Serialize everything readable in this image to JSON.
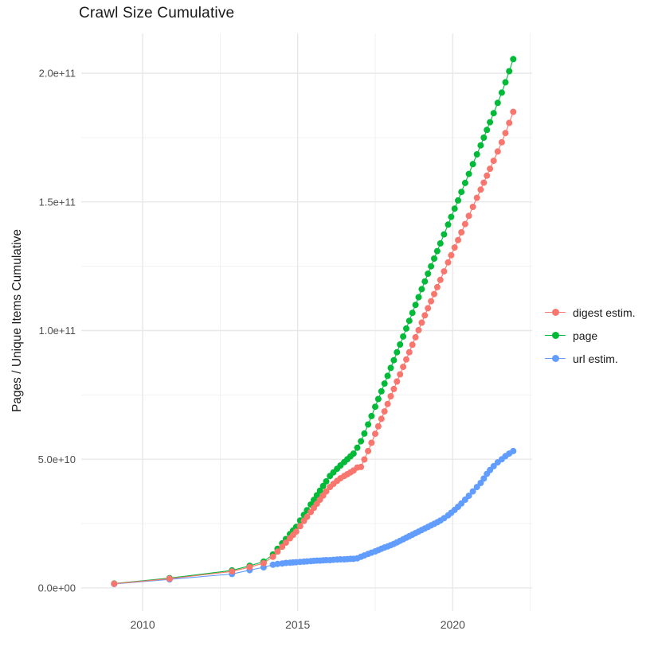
{
  "title": "Crawl Size Cumulative",
  "y_axis": {
    "label": "Pages / Unique Items Cumulative",
    "ticks": [
      {
        "value": 0,
        "label": "0.0e+00"
      },
      {
        "value": 50000000000.0,
        "label": "5.0e+10"
      },
      {
        "value": 100000000000.0,
        "label": "1.0e+11"
      },
      {
        "value": 150000000000.0,
        "label": "1.5e+11"
      },
      {
        "value": 200000000000.0,
        "label": "2.0e+11"
      }
    ],
    "minor_ticks": [
      25000000000.0,
      75000000000.0,
      125000000000.0,
      175000000000.0
    ]
  },
  "x_axis": {
    "label": "",
    "ticks": [
      {
        "value": 2010,
        "label": "2010"
      },
      {
        "value": 2015,
        "label": "2015"
      },
      {
        "value": 2020,
        "label": "2020"
      }
    ],
    "minor_ticks": [
      2012.5,
      2017.5,
      2022.5
    ]
  },
  "legend": {
    "items": [
      {
        "label": "digest estim.",
        "color": "#F8766D"
      },
      {
        "label": "page",
        "color": "#00BA38"
      },
      {
        "label": "url estim.",
        "color": "#619CFF"
      }
    ]
  },
  "chart_data": {
    "type": "line",
    "marker": "point",
    "title": "Crawl Size Cumulative",
    "xlabel": "",
    "ylabel": "Pages / Unique Items Cumulative",
    "grid": true,
    "legend_position": "right",
    "x_domain": [
      2008.02,
      2022.56
    ],
    "y_domain": [
      -9000000000.0,
      215500000000.0
    ],
    "x": [
      2009.08,
      2010.87,
      2012.88,
      2013.45,
      2013.9,
      2014.2,
      2014.35,
      2014.5,
      2014.62,
      2014.75,
      2014.85,
      2014.95,
      2015.08,
      2015.2,
      2015.3,
      2015.42,
      2015.52,
      2015.62,
      2015.72,
      2015.82,
      2015.92,
      2016.04,
      2016.15,
      2016.27,
      2016.38,
      2016.5,
      2016.6,
      2016.7,
      2016.8,
      2016.92,
      2017.04,
      2017.15,
      2017.27,
      2017.38,
      2017.5,
      2017.6,
      2017.7,
      2017.8,
      2017.9,
      2018.0,
      2018.1,
      2018.2,
      2018.3,
      2018.4,
      2018.5,
      2018.6,
      2018.7,
      2018.8,
      2018.9,
      2019.0,
      2019.1,
      2019.2,
      2019.3,
      2019.4,
      2019.5,
      2019.6,
      2019.72,
      2019.85,
      2019.95,
      2020.06,
      2020.17,
      2020.28,
      2020.4,
      2020.52,
      2020.65,
      2020.78,
      2020.9,
      2021.0,
      2021.1,
      2021.2,
      2021.32,
      2021.45,
      2021.58,
      2021.7,
      2021.82,
      2021.95
    ],
    "series": [
      {
        "name": "digest estim.",
        "color": "#F8766D",
        "values": [
          1600000000.0,
          3600000000.0,
          6400000000.0,
          8100000000.0,
          9600000000.0,
          12100000000.0,
          14100000000.0,
          16000000000.0,
          17600000000.0,
          19300000000.0,
          20600000000.0,
          21900000000.0,
          24000000000.0,
          26000000000.0,
          27600000000.0,
          29500000000.0,
          31100000000.0,
          32700000000.0,
          34300000000.0,
          35900000000.0,
          37500000000.0,
          39200000000.0,
          40400000000.0,
          41600000000.0,
          42600000000.0,
          43500000000.0,
          44200000000.0,
          44900000000.0,
          45600000000.0,
          46800000000.0,
          47000000000.0,
          49900000000.0,
          53200000000.0,
          56400000000.0,
          59900000000.0,
          62800000000.0,
          65700000000.0,
          68600000000.0,
          71500000000.0,
          74500000000.0,
          77300000000.0,
          80200000000.0,
          83000000000.0,
          85900000000.0,
          88800000000.0,
          91600000000.0,
          94500000000.0,
          97400000000.0,
          100200000000.0,
          103100000000.0,
          105900000000.0,
          108700000000.0,
          111400000000.0,
          114200000000.0,
          116900000000.0,
          119700000000.0,
          123000000000.0,
          126500000000.0,
          129300000000.0,
          132300000000.0,
          135200000000.0,
          138200000000.0,
          141400000000.0,
          144600000000.0,
          148100000000.0,
          151600000000.0,
          154800000000.0,
          157500000000.0,
          160200000000.0,
          162900000000.0,
          166000000000.0,
          169600000000.0,
          173200000000.0,
          176800000000.0,
          180700000000.0,
          185000000000.0
        ]
      },
      {
        "name": "page",
        "color": "#00BA38",
        "values": [
          1700000000.0,
          3800000000.0,
          6800000000.0,
          8600000000.0,
          10200000000.0,
          13000000000.0,
          15200000000.0,
          17300000000.0,
          19000000000.0,
          20900000000.0,
          22300000000.0,
          23700000000.0,
          26200000000.0,
          28400000000.0,
          30200000000.0,
          32400000000.0,
          34200000000.0,
          36000000000.0,
          37800000000.0,
          39600000000.0,
          41400000000.0,
          43500000000.0,
          44900000000.0,
          46300000000.0,
          47600000000.0,
          48900000000.0,
          50000000000.0,
          51100000000.0,
          52200000000.0,
          54500000000.0,
          57000000000.0,
          60000000000.0,
          63500000000.0,
          66800000000.0,
          70400000000.0,
          73400000000.0,
          76400000000.0,
          79400000000.0,
          82400000000.0,
          85500000000.0,
          88500000000.0,
          91600000000.0,
          94600000000.0,
          97700000000.0,
          100800000000.0,
          103800000000.0,
          106900000000.0,
          110000000000.0,
          113000000000.0,
          116100000000.0,
          119100000000.0,
          122100000000.0,
          125000000000.0,
          128000000000.0,
          130900000000.0,
          133900000000.0,
          137400000000.0,
          141200000000.0,
          144200000000.0,
          147400000000.0,
          150600000000.0,
          153900000000.0,
          157400000000.0,
          160900000000.0,
          164700000000.0,
          168500000000.0,
          172000000000.0,
          175000000000.0,
          178000000000.0,
          181000000000.0,
          184500000000.0,
          188500000000.0,
          192500000000.0,
          196500000000.0,
          200800000000.0,
          205500000000.0
        ]
      },
      {
        "name": "url estim.",
        "color": "#619CFF",
        "values": [
          1500000000.0,
          3300000000.0,
          5400000000.0,
          6900000000.0,
          8000000000.0,
          9000000000.0,
          9300000000.0,
          9500000000.0,
          9700000000.0,
          9800000000.0,
          9900000000.0,
          10000000000.0,
          10100000000.0,
          10200000000.0,
          10300000000.0,
          10400000000.0,
          10500000000.0,
          10600000000.0,
          10600000000.0,
          10700000000.0,
          10800000000.0,
          10800000000.0,
          10900000000.0,
          11000000000.0,
          11100000000.0,
          11100000000.0,
          11200000000.0,
          11300000000.0,
          11300000000.0,
          11500000000.0,
          12100000000.0,
          12600000000.0,
          13200000000.0,
          13700000000.0,
          14200000000.0,
          14700000000.0,
          15200000000.0,
          15700000000.0,
          16100000000.0,
          16600000000.0,
          17100000000.0,
          17700000000.0,
          18300000000.0,
          18900000000.0,
          19500000000.0,
          20100000000.0,
          20700000000.0,
          21300000000.0,
          21900000000.0,
          22500000000.0,
          23100000000.0,
          23700000000.0,
          24300000000.0,
          24900000000.0,
          25500000000.0,
          26200000000.0,
          27100000000.0,
          28200000000.0,
          29200000000.0,
          30300000000.0,
          31500000000.0,
          32800000000.0,
          34300000000.0,
          35800000000.0,
          37500000000.0,
          39200000000.0,
          40800000000.0,
          42500000000.0,
          44300000000.0,
          45800000000.0,
          47300000000.0,
          48800000000.0,
          50000000000.0,
          51200000000.0,
          52200000000.0,
          53200000000.0
        ]
      }
    ]
  }
}
